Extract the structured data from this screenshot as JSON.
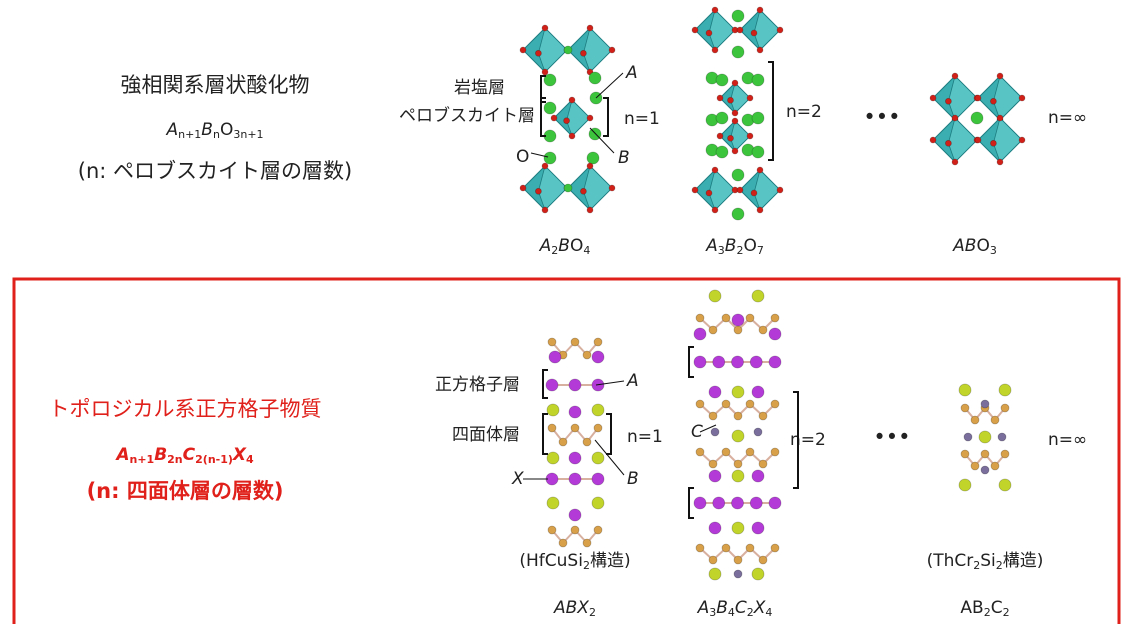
{
  "top": {
    "title": "強相関系層状酸化物",
    "formula": [
      {
        "text": "A",
        "italic": true
      },
      {
        "text": "n+1",
        "sub": true
      },
      {
        "text": "B",
        "italic": true
      },
      {
        "text": "n",
        "sub": true
      },
      {
        "text": "O"
      },
      {
        "text": "3n+1",
        "sub": true
      }
    ],
    "note": "(n: ペロブスカイト層の層数)",
    "labels": {
      "rock_salt": "岩塩層",
      "perovskite": "ペロブスカイト層",
      "A": "A",
      "B": "B",
      "O": "O",
      "n1": "n=1",
      "n2": "n=2",
      "dots": "•••",
      "ninf": "n=∞"
    },
    "captions": [
      [
        {
          "text": "A",
          "italic": true
        },
        {
          "text": "2",
          "sub": true
        },
        {
          "text": "B",
          "italic": true
        },
        {
          "text": "O"
        },
        {
          "text": "4",
          "sub": true
        }
      ],
      [
        {
          "text": "A",
          "italic": true
        },
        {
          "text": "3",
          "sub": true
        },
        {
          "text": "B",
          "italic": true
        },
        {
          "text": "2",
          "sub": true
        },
        {
          "text": "O"
        },
        {
          "text": "7",
          "sub": true
        }
      ],
      [
        {
          "text": "AB",
          "italic": true
        },
        {
          "text": "O"
        },
        {
          "text": "3",
          "sub": true
        }
      ]
    ]
  },
  "bottom": {
    "title": "トポロジカル系正方格子物質",
    "formula": [
      {
        "text": "A",
        "italic": true
      },
      {
        "text": "n+1",
        "sub": true
      },
      {
        "text": "B",
        "italic": true
      },
      {
        "text": "2n",
        "sub": true
      },
      {
        "text": "C",
        "italic": true
      },
      {
        "text": "2(n-1)",
        "sub": true
      },
      {
        "text": "X",
        "italic": true
      },
      {
        "text": "4",
        "sub": true
      }
    ],
    "note": "(n: 四面体層の層数)",
    "labels": {
      "square": "正方格子層",
      "tetra": "四面体層",
      "A": "A",
      "B": "B",
      "X": "X",
      "C": "C",
      "n1": "n=1",
      "n2": "n=2",
      "dots": "•••",
      "ninf": "n=∞"
    },
    "structures": [
      [
        {
          "text": "(HfCuSi"
        },
        {
          "text": "2",
          "sub": true
        },
        {
          "text": "構造)"
        }
      ],
      [
        {
          "text": "(ThCr"
        },
        {
          "text": "2",
          "sub": true
        },
        {
          "text": "Si"
        },
        {
          "text": "2",
          "sub": true
        },
        {
          "text": "構造)"
        }
      ]
    ],
    "captions": [
      [
        {
          "text": "ABX",
          "italic": true
        },
        {
          "text": "2",
          "sub": true
        }
      ],
      [
        {
          "text": "A",
          "italic": true
        },
        {
          "text": "3",
          "sub": true
        },
        {
          "text": "B",
          "italic": true
        },
        {
          "text": "4",
          "sub": true
        },
        {
          "text": "C",
          "italic": true
        },
        {
          "text": "2",
          "sub": true
        },
        {
          "text": "X",
          "italic": true
        },
        {
          "text": "4",
          "sub": true
        }
      ],
      [
        {
          "text": "AB"
        },
        {
          "text": "2",
          "sub": true
        },
        {
          "text": "C"
        },
        {
          "text": "2",
          "sub": true
        }
      ]
    ]
  }
}
